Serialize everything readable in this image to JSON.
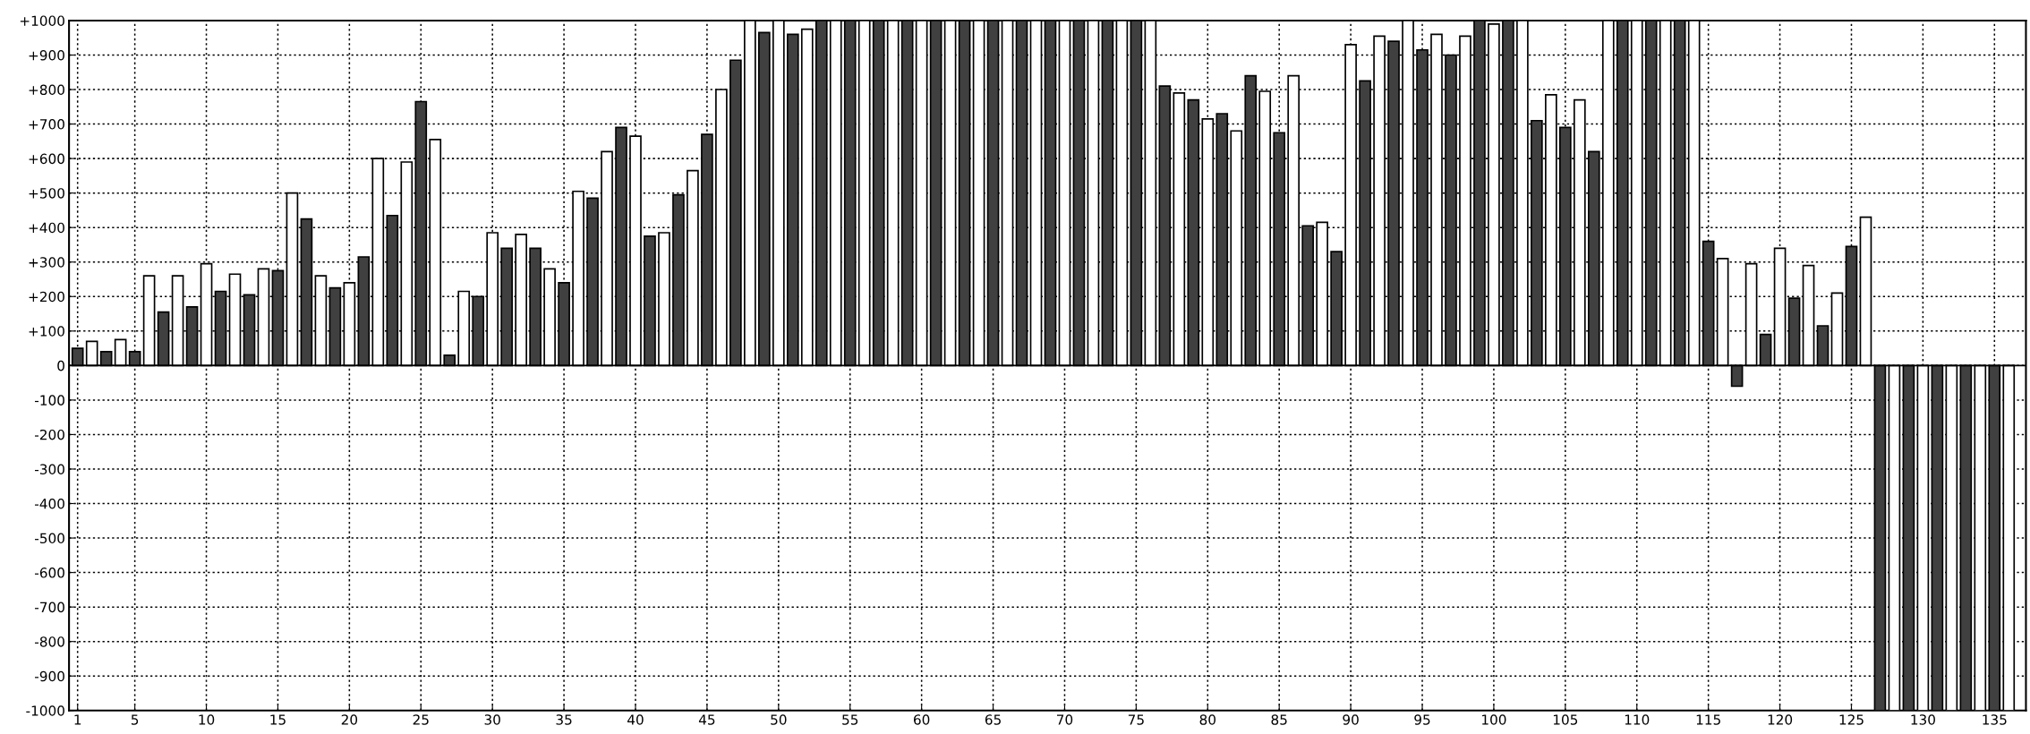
{
  "chart_data": {
    "type": "bar",
    "series": [
      {
        "color": "#404040",
        "x": [
          1,
          3,
          5,
          7,
          9,
          11,
          13,
          15,
          17,
          19,
          21,
          23,
          25,
          27,
          29,
          31,
          33,
          35,
          37,
          39,
          41,
          43,
          45,
          47,
          49,
          51,
          53,
          55,
          57,
          59,
          61,
          63,
          65,
          67,
          69,
          71,
          73,
          75,
          77,
          79,
          81,
          83,
          85,
          87,
          89,
          91,
          93,
          95,
          97,
          99,
          101,
          103,
          105,
          107,
          109,
          111,
          113,
          115,
          117,
          119,
          121,
          123,
          125,
          127,
          129,
          131,
          133,
          135
        ],
        "values": [
          50,
          40,
          40,
          155,
          170,
          215,
          205,
          275,
          425,
          225,
          315,
          435,
          765,
          30,
          200,
          340,
          340,
          240,
          485,
          690,
          375,
          495,
          670,
          885,
          965,
          960,
          1000,
          1000,
          1000,
          1000,
          1000,
          1000,
          1000,
          1000,
          1000,
          1000,
          1000,
          1000,
          810,
          770,
          730,
          840,
          675,
          405,
          330,
          825,
          940,
          915,
          900,
          1000,
          1000,
          710,
          690,
          620,
          1000,
          1000,
          1000,
          360,
          -60,
          90,
          195,
          115,
          345,
          -1000,
          -1000,
          -1000,
          -1000,
          -1000
        ]
      },
      {
        "color": "#ffffff",
        "x": [
          2,
          4,
          6,
          8,
          10,
          12,
          14,
          16,
          18,
          20,
          22,
          24,
          26,
          28,
          30,
          32,
          34,
          36,
          38,
          40,
          42,
          44,
          46,
          48,
          50,
          52,
          54,
          56,
          58,
          60,
          62,
          64,
          66,
          68,
          70,
          72,
          74,
          76,
          78,
          80,
          82,
          84,
          86,
          88,
          90,
          92,
          94,
          96,
          98,
          100,
          102,
          104,
          106,
          108,
          110,
          112,
          114,
          116,
          118,
          120,
          122,
          124,
          126,
          128,
          130,
          132,
          134,
          136
        ],
        "values": [
          70,
          75,
          260,
          260,
          295,
          265,
          280,
          500,
          260,
          240,
          600,
          590,
          655,
          215,
          385,
          380,
          280,
          505,
          620,
          665,
          385,
          565,
          800,
          1000,
          1000,
          975,
          1000,
          1000,
          1000,
          1000,
          1000,
          1000,
          1000,
          1000,
          1000,
          1000,
          1000,
          1000,
          790,
          715,
          680,
          795,
          840,
          415,
          930,
          955,
          1000,
          960,
          955,
          990,
          1000,
          785,
          770,
          1000,
          1000,
          1000,
          1000,
          310,
          295,
          340,
          290,
          210,
          430,
          -1000,
          -1000,
          -1000,
          -1000,
          -1000
        ]
      }
    ],
    "xlim": [
      0.4,
      137.2
    ],
    "xticks": [
      1,
      5,
      10,
      15,
      20,
      25,
      30,
      35,
      40,
      45,
      50,
      55,
      60,
      65,
      70,
      75,
      80,
      85,
      90,
      95,
      100,
      105,
      110,
      115,
      120,
      125,
      130,
      135
    ],
    "ylim": [
      -1000,
      1000
    ],
    "yticks": [
      {
        "value": -1000,
        "label": "-1000"
      },
      {
        "value": -900,
        "label": "-900"
      },
      {
        "value": -800,
        "label": "-800"
      },
      {
        "value": -700,
        "label": "-700"
      },
      {
        "value": -600,
        "label": "-600"
      },
      {
        "value": -500,
        "label": "-500"
      },
      {
        "value": -400,
        "label": "-400"
      },
      {
        "value": -300,
        "label": "-300"
      },
      {
        "value": -200,
        "label": "-200"
      },
      {
        "value": -100,
        "label": "-100"
      },
      0,
      {
        "value": 100,
        "label": "+100"
      },
      {
        "value": 200,
        "label": "+200"
      },
      {
        "value": 300,
        "label": "+300"
      },
      {
        "value": 400,
        "label": "+400"
      },
      {
        "value": 500,
        "label": "+500"
      },
      {
        "value": 600,
        "label": "+600"
      },
      {
        "value": 700,
        "label": "+700"
      },
      {
        "value": 800,
        "label": "+800"
      },
      {
        "value": 900,
        "label": "+900"
      },
      {
        "value": 1000,
        "label": "+1000"
      }
    ],
    "grid": true
  }
}
